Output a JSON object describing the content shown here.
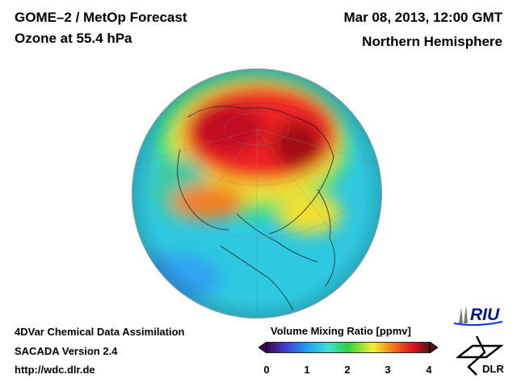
{
  "header": {
    "title": "GOME–2 / MetOp Forecast",
    "subtitle": "Ozone at 55.4 hPa",
    "date": "Mar 08, 2013, 12:00 GMT",
    "region": "Northern Hemisphere"
  },
  "footer": {
    "line1": "4DVar Chemical Data Assimilation",
    "line2": "SACADA Version 2.4",
    "line3": "http://wdc.dlr.de"
  },
  "colorbar": {
    "title": "Volume Mixing Ratio [ppmv]",
    "ticks": [
      "0",
      "1",
      "2",
      "3",
      "4"
    ],
    "range": [
      0,
      4
    ]
  },
  "logos": {
    "riu": "RIU",
    "dlr": "DLR"
  }
}
